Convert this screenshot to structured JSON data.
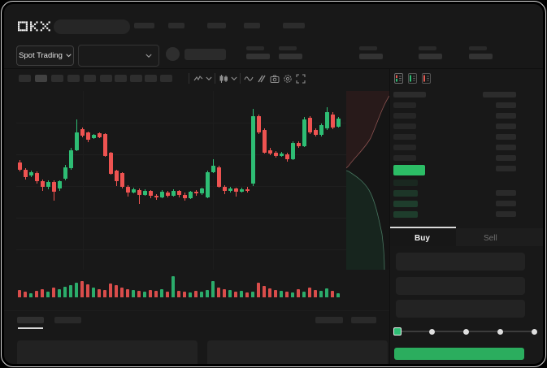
{
  "window": {
    "background": "#000000",
    "frame_border_color": "#d9d9d9",
    "app_background": "#181818"
  },
  "header": {
    "logo": "OKX",
    "nav_item_count": 5
  },
  "subheader": {
    "market_selector": {
      "label": "Spot Trading",
      "caret_icon": "chevron-down-icon"
    },
    "pair_dropdown_caret_icon": "chevron-down-icon",
    "stat_group_count": 5
  },
  "chart_toolbar": {
    "timeframe_button_count": 10,
    "active_timeframe_index": 1,
    "icons": [
      "indicator-icon",
      "chevron-down-icon",
      "candlestick-icon",
      "chevron-down-icon",
      "line-chart-icon",
      "compare-icon",
      "camera-icon",
      "settings-icon",
      "fullscreen-icon"
    ]
  },
  "order_book": {
    "view_toggle_icons": [
      "book-split-icon",
      "book-bids-icon",
      "book-asks-icon"
    ],
    "ask_row_count": 6,
    "right_column_top_count": 7,
    "bid_row_count": 4,
    "right_column_bottom_count": 3,
    "last_price_color": "#2cbd66",
    "bid_row_colors": [
      "#1a2820",
      "#1d3628",
      "#1e3d2c",
      "#1e3d2c"
    ]
  },
  "trade_panel": {
    "tabs": [
      {
        "label": "Buy",
        "active": true
      },
      {
        "label": "Sell",
        "active": false
      }
    ],
    "input_count": 3,
    "slider": {
      "stop_count": 5,
      "selected_index": 0,
      "handle_color": "#2ebd74"
    },
    "submit_button_color": "#2bad5e"
  },
  "bottom_panel": {
    "tab_count": 2,
    "active_tab_index": 0,
    "right_link_count": 2,
    "content_box_count": 2
  },
  "chart_data": {
    "type": "candlestick",
    "note": "no axis labels visible; prices normalized 0-100",
    "up_color": "#2ebd74",
    "down_color": "#ee5351",
    "grid": true,
    "candles_format": [
      "open",
      "close",
      "high",
      "low"
    ],
    "candles": [
      [
        60,
        56,
        61.5,
        55
      ],
      [
        56,
        52,
        57,
        50.5
      ],
      [
        52.5,
        54.5,
        55.5,
        52
      ],
      [
        54,
        49.5,
        55,
        48
      ],
      [
        49.5,
        46.5,
        50.5,
        44
      ],
      [
        46.5,
        49,
        50,
        45
      ],
      [
        49,
        43.5,
        50,
        38.5
      ],
      [
        45.5,
        49.5,
        50,
        44
      ],
      [
        51,
        57.5,
        58.5,
        50
      ],
      [
        57,
        67,
        68,
        56
      ],
      [
        67,
        77,
        84,
        66.5
      ],
      [
        78.5,
        75,
        79.5,
        74
      ],
      [
        77,
        72.5,
        77.5,
        71.5
      ],
      [
        73.5,
        75.5,
        76,
        73
      ],
      [
        76.5,
        74,
        77,
        73.5
      ],
      [
        76,
        63.5,
        76.5,
        63
      ],
      [
        65.5,
        53.5,
        66,
        53
      ],
      [
        55.5,
        49.5,
        56,
        47
      ],
      [
        54,
        46.5,
        54.5,
        45.5
      ],
      [
        46.5,
        43,
        47.5,
        41
      ],
      [
        43,
        45,
        46,
        42.5
      ],
      [
        44.5,
        42,
        45.5,
        37
      ],
      [
        42,
        44,
        45,
        41.5
      ],
      [
        44,
        41.5,
        44.5,
        40
      ],
      [
        41.5,
        40.5,
        42.5,
        39
      ],
      [
        40.5,
        43.5,
        44.5,
        40
      ],
      [
        43,
        41.5,
        44,
        40.5
      ],
      [
        41.5,
        44,
        45,
        41
      ],
      [
        44,
        42,
        44.5,
        40.5
      ],
      [
        42,
        40,
        43,
        38.5
      ],
      [
        40,
        43.5,
        44,
        39.5
      ],
      [
        43.5,
        42.5,
        44.5,
        41.5
      ],
      [
        42.5,
        45.5,
        46,
        42
      ],
      [
        40.5,
        54.5,
        55.5,
        40
      ],
      [
        54.5,
        58,
        62,
        54
      ],
      [
        57.5,
        46.5,
        58,
        46
      ],
      [
        46.5,
        44,
        47.5,
        42.5
      ],
      [
        44,
        45.5,
        46.5,
        43
      ],
      [
        45.5,
        43.5,
        46,
        41
      ],
      [
        43.5,
        45,
        46,
        43
      ],
      [
        45,
        44,
        46.5,
        43
      ],
      [
        48,
        86,
        90,
        47
      ],
      [
        86,
        77,
        87,
        76
      ],
      [
        78,
        65.5,
        79,
        65
      ],
      [
        67,
        65,
        68,
        64
      ],
      [
        65.5,
        63.5,
        66.5,
        62.5
      ],
      [
        63.5,
        65,
        66,
        63
      ],
      [
        64.5,
        62,
        65.5,
        60.5
      ],
      [
        62,
        71,
        72,
        61.5
      ],
      [
        71,
        69,
        72,
        68
      ],
      [
        69,
        84,
        85.5,
        68.5
      ],
      [
        85,
        77,
        86,
        76
      ],
      [
        78,
        75.5,
        79,
        74.5
      ],
      [
        75.5,
        81,
        82,
        74.5
      ],
      [
        79,
        88,
        91,
        78
      ],
      [
        87,
        79.5,
        88,
        78.5
      ],
      [
        80,
        84.5,
        85.5,
        79.5
      ]
    ],
    "volume": [
      9,
      7,
      5,
      8,
      10,
      7,
      12,
      10,
      13,
      15,
      18,
      20,
      16,
      12,
      10,
      9,
      17,
      15,
      12,
      10,
      9,
      8,
      7,
      9,
      8,
      10,
      7,
      26,
      8,
      7,
      6,
      8,
      7,
      9,
      20,
      12,
      10,
      9,
      7,
      8,
      6,
      7,
      18,
      14,
      11,
      9,
      8,
      7,
      6,
      10,
      7,
      12,
      9,
      8,
      11,
      8,
      5
    ],
    "depth_overlay": {
      "asks_color": "#ee5351",
      "bids_color": "#2ebd74",
      "orientation": "vertical-right-edge"
    }
  }
}
